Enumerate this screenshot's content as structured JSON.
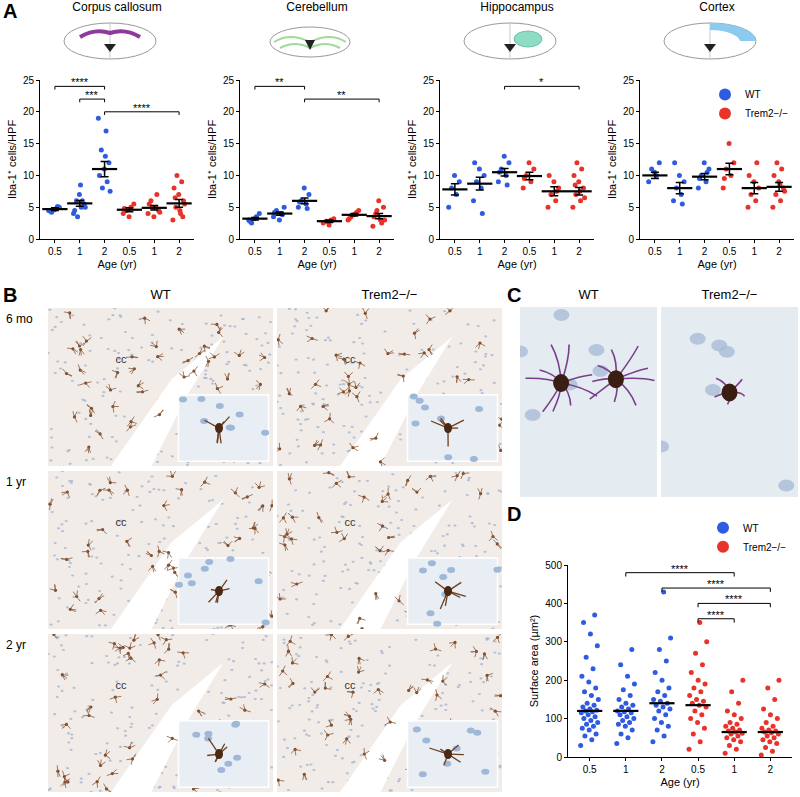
{
  "panel_labels": [
    "A",
    "B",
    "C",
    "D"
  ],
  "chart_data": [
    {
      "type": "scatter",
      "title": "Corpus callosum",
      "xlabel": "Age (yr)",
      "ylabel": "Iba-1⁺ cells/HPF",
      "categories": [
        "0.5",
        "1",
        "2"
      ],
      "ylim": [
        0,
        25
      ],
      "yticks": [
        0,
        5,
        10,
        15,
        20,
        25
      ],
      "series": [
        {
          "name": "WT",
          "color": "#2f5be0",
          "values": [
            [
              4.5,
              4.8,
              4.2,
              5.0,
              4.6,
              4.4,
              5.1
            ],
            [
              4.0,
              5.0,
              6.0,
              5.5,
              7.0,
              4.5,
              6.0,
              3.5,
              5.0,
              8.5
            ],
            [
              19,
              17,
              14,
              12,
              11,
              10,
              9,
              8,
              7.5,
              13
            ]
          ],
          "mean": [
            4.7,
            5.6,
            11.0
          ],
          "sem": [
            0.2,
            0.45,
            1.2
          ]
        },
        {
          "name": "Trem2−/−",
          "color": "#e8332b",
          "values": [
            [
              4.0,
              5.0,
              4.5,
              5.5,
              3.5,
              4.8
            ],
            [
              4.0,
              5.0,
              6.0,
              4.5,
              3.5,
              5.5,
              7.0,
              5.0,
              4.2
            ],
            [
              3.0,
              4.0,
              5.0,
              6.0,
              7.0,
              8.0,
              9.0,
              10.0,
              5.5,
              4.5,
              6.5,
              3.5
            ]
          ],
          "mean": [
            4.6,
            4.9,
            5.6
          ],
          "sem": [
            0.3,
            0.35,
            0.6
          ]
        }
      ],
      "comparisons": [
        {
          "a": [
            0,
            0
          ],
          "b": [
            0,
            2
          ],
          "label": "****"
        },
        {
          "a": [
            0,
            1
          ],
          "b": [
            0,
            2
          ],
          "label": "***"
        },
        {
          "a": [
            0,
            2
          ],
          "b": [
            1,
            2
          ],
          "label": "****"
        }
      ]
    },
    {
      "type": "scatter",
      "title": "Cerebellum",
      "xlabel": "Age (yr)",
      "ylabel": "Iba-1⁺ cells/HPF",
      "categories": [
        "0.5",
        "1",
        "2"
      ],
      "ylim": [
        0,
        25
      ],
      "yticks": [
        0,
        5,
        10,
        15,
        20,
        25
      ],
      "series": [
        {
          "name": "WT",
          "color": "#2f5be0",
          "values": [
            [
              3.0,
              3.5,
              2.5,
              4.0,
              3.2,
              2.8
            ],
            [
              3.5,
              4.0,
              4.5,
              5.0,
              3.0,
              4.2,
              3.8
            ],
            [
              5.0,
              5.5,
              6.0,
              7.0,
              8.0,
              5.8,
              4.8
            ]
          ],
          "mean": [
            3.2,
            4.0,
            6.0
          ],
          "sem": [
            0.2,
            0.25,
            0.45
          ]
        },
        {
          "name": "Trem2−/−",
          "color": "#e8332b",
          "values": [
            [
              2.5,
              3.0,
              2.8,
              3.2,
              2.2
            ],
            [
              3.0,
              4.0,
              3.5,
              4.5,
              3.8,
              3.2,
              4.2
            ],
            [
              2.0,
              3.0,
              4.0,
              5.0,
              6.0,
              3.5,
              2.5,
              4.5,
              3.0
            ]
          ],
          "mean": [
            2.8,
            3.8,
            3.6
          ],
          "sem": [
            0.2,
            0.2,
            0.4
          ]
        }
      ],
      "comparisons": [
        {
          "a": [
            0,
            0
          ],
          "b": [
            0,
            2
          ],
          "label": "**"
        },
        {
          "a": [
            0,
            2
          ],
          "b": [
            1,
            2
          ],
          "label": "**"
        }
      ]
    },
    {
      "type": "scatter",
      "title": "Hippocampus",
      "xlabel": "Age (yr)",
      "ylabel": "Iba-1⁺ cells/HPF",
      "categories": [
        "0.5",
        "1",
        "2"
      ],
      "ylim": [
        0,
        25
      ],
      "yticks": [
        0,
        5,
        10,
        15,
        20,
        25
      ],
      "series": [
        {
          "name": "WT",
          "color": "#2f5be0",
          "values": [
            [
              5.0,
              7.0,
              8.0,
              9.0,
              10.0
            ],
            [
              6.0,
              8.0,
              9.0,
              10.0,
              11.0,
              12.0,
              4.0
            ],
            [
              9.0,
              10.0,
              11.0,
              12.0,
              13.0,
              10.5,
              8.5
            ]
          ],
          "mean": [
            7.8,
            8.7,
            10.5
          ],
          "sem": [
            0.9,
            1.0,
            0.6
          ]
        },
        {
          "name": "Trem2−/−",
          "color": "#e8332b",
          "values": [
            [
              8.0,
              9.0,
              10.0,
              11.0,
              12.0,
              9.5
            ],
            [
              5.0,
              6.0,
              7.0,
              8.0,
              9.0,
              10.0,
              7.5
            ],
            [
              5.0,
              6.0,
              7.0,
              8.0,
              9.0,
              10.0,
              11.0,
              12.0,
              6.5,
              7.5,
              8.5
            ]
          ],
          "mean": [
            9.9,
            7.5,
            7.5
          ],
          "sem": [
            0.6,
            0.7,
            0.6
          ]
        }
      ],
      "comparisons": [
        {
          "a": [
            0,
            2
          ],
          "b": [
            1,
            2
          ],
          "label": "*"
        }
      ]
    },
    {
      "type": "scatter",
      "title": "Cortex",
      "xlabel": "Age (yr)",
      "ylabel": "Iba-1⁺ cells/HPF",
      "categories": [
        "0.5",
        "1",
        "2"
      ],
      "ylim": [
        0,
        25
      ],
      "yticks": [
        0,
        5,
        10,
        15,
        20,
        25
      ],
      "legend": "top right",
      "series": [
        {
          "name": "WT",
          "color": "#2f5be0",
          "values": [
            [
              9.0,
              10.0,
              11.0,
              12.0,
              10.5
            ],
            [
              6.0,
              7.0,
              8.0,
              9.0,
              10.0,
              12.0,
              5.5
            ],
            [
              8.0,
              9.0,
              10.0,
              11.0,
              12.0,
              9.5,
              10.5
            ]
          ],
          "mean": [
            10.0,
            8.0,
            9.8
          ],
          "sem": [
            0.5,
            0.9,
            0.5
          ]
        },
        {
          "name": "Trem2−/−",
          "color": "#e8332b",
          "values": [
            [
              8.0,
              10.0,
              11.0,
              12.0,
              15.0,
              9.5
            ],
            [
              5.0,
              6.0,
              7.0,
              8.0,
              9.0,
              10.0,
              12.0
            ],
            [
              5.0,
              6.0,
              7.0,
              8.0,
              9.0,
              10.0,
              11.0,
              12.0,
              7.5,
              8.5
            ]
          ],
          "mean": [
            11.0,
            8.0,
            8.2
          ],
          "sem": [
            0.9,
            0.9,
            0.7
          ]
        }
      ]
    },
    {
      "type": "scatter",
      "xlabel": "Age (yr)",
      "ylabel": "Surface area (µm²)",
      "categories": [
        "0.5",
        "1",
        "2"
      ],
      "ylim": [
        0,
        500
      ],
      "yticks": [
        0,
        100,
        200,
        300,
        400,
        500
      ],
      "legend": "top right",
      "series": [
        {
          "name": "WT",
          "color": "#2f5be0",
          "values": [
            [
              30,
              45,
              55,
              60,
              70,
              75,
              80,
              85,
              90,
              95,
              100,
              105,
              110,
              115,
              118,
              120,
              122,
              125,
              130,
              135,
              140,
              150,
              160,
              170,
              180,
              195,
              210,
              230,
              260,
              290,
              320,
              350,
              370
            ],
            [
              35,
              50,
              60,
              70,
              80,
              85,
              90,
              95,
              100,
              105,
              110,
              115,
              118,
              120,
              125,
              130,
              135,
              140,
              150,
              160,
              175,
              190,
              210,
              240,
              280
            ],
            [
              40,
              55,
              70,
              80,
              90,
              100,
              110,
              120,
              125,
              130,
              135,
              140,
              145,
              150,
              160,
              170,
              180,
              200,
              220,
              250,
              280,
              310,
              430
            ]
          ],
          "mean": [
            120,
            120,
            140
          ]
        },
        {
          "name": "Trem2−/−",
          "color": "#e8332b",
          "values": [
            [
              20,
              40,
              60,
              75,
              90,
              100,
              110,
              120,
              130,
              135,
              140,
              145,
              150,
              160,
              170,
              180,
              190,
              200,
              220,
              240,
              270,
              300,
              350
            ],
            [
              10,
              20,
              30,
              40,
              45,
              50,
              55,
              60,
              62,
              65,
              68,
              70,
              75,
              80,
              85,
              90,
              100,
              110,
              120,
              140,
              170,
              200
            ],
            [
              5,
              15,
              25,
              35,
              40,
              45,
              50,
              55,
              60,
              63,
              65,
              68,
              70,
              75,
              80,
              90,
              100,
              110,
              125,
              150,
              180,
              200
            ]
          ],
          "mean": [
            135,
            65,
            65
          ]
        }
      ],
      "comparisons": [
        {
          "a": [
            0,
            1
          ],
          "b": [
            1,
            1
          ],
          "label": "****"
        },
        {
          "a": [
            0,
            2
          ],
          "b": [
            1,
            2
          ],
          "label": "****"
        },
        {
          "a": [
            1,
            0
          ],
          "b": [
            1,
            2
          ],
          "label": "****"
        },
        {
          "a": [
            1,
            0
          ],
          "b": [
            1,
            1
          ],
          "label": "****"
        }
      ]
    }
  ],
  "panel_b": {
    "columns": [
      "WT",
      "Trem2−/−"
    ],
    "rows": [
      "6 mo",
      "1 yr",
      "2 yr"
    ],
    "region_label": "cc"
  },
  "panel_c": {
    "columns": [
      "WT",
      "Trem2−/−"
    ]
  }
}
